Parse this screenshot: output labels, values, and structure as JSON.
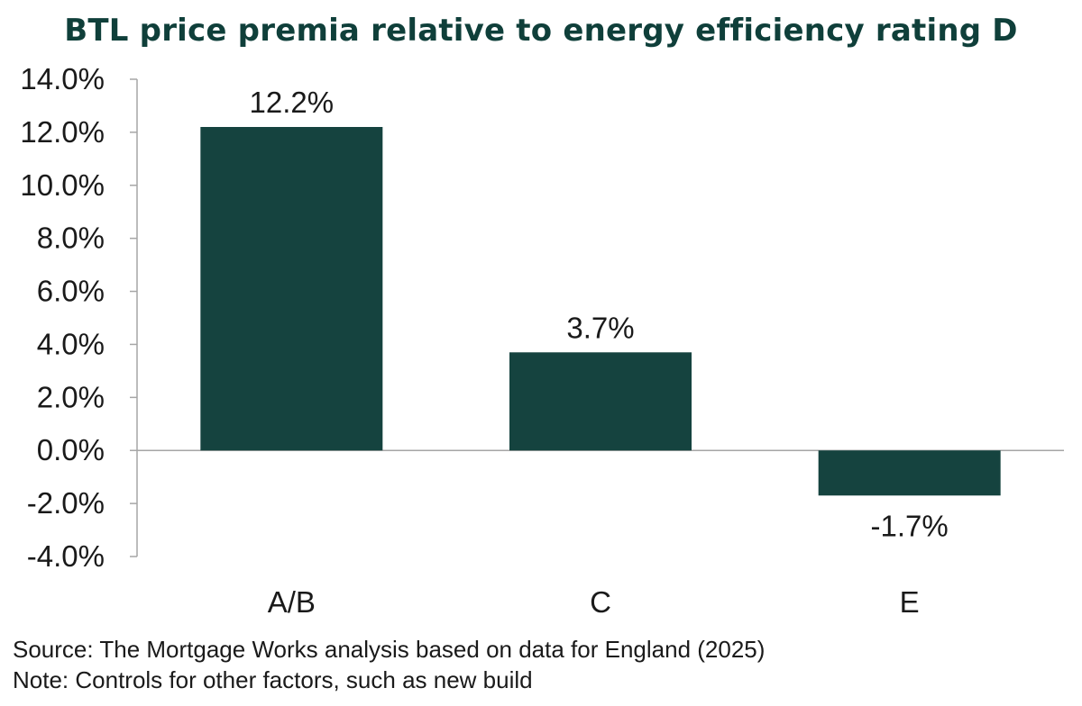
{
  "chart_data": {
    "type": "bar",
    "title": "BTL price premia relative to energy efficiency rating D",
    "categories": [
      "A/B",
      "C",
      "E"
    ],
    "values": [
      12.2,
      3.7,
      -1.7
    ],
    "value_labels": [
      "12.2%",
      "3.7%",
      "-1.7%"
    ],
    "y_ticks": [
      14.0,
      12.0,
      10.0,
      8.0,
      6.0,
      4.0,
      2.0,
      0.0,
      -2.0,
      -4.0
    ],
    "y_tick_labels": [
      "14.0%",
      "12.0%",
      "10.0%",
      "8.0%",
      "6.0%",
      "4.0%",
      "2.0%",
      "0.0%",
      "-2.0%",
      "-4.0%"
    ],
    "ylim": [
      -4.0,
      14.0
    ],
    "xlabel": "",
    "ylabel": "",
    "grid": false,
    "legend": "none",
    "bar_color": "#15433f",
    "title_color": "#0f3f3a"
  },
  "footnotes": {
    "source": "Source: The Mortgage Works analysis based on data for England (2025)",
    "note": "Note: Controls for other factors, such as new build"
  }
}
